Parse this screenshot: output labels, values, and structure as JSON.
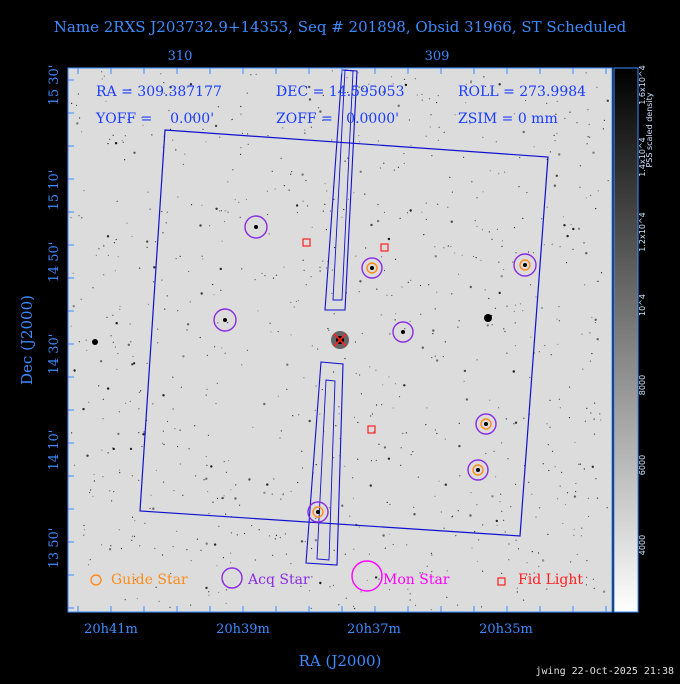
{
  "title": "Name 2RXS J203732.9+14353, Seq # 201898, Obsid 31966, ST Scheduled",
  "footer": "jwing 22-Oct-2025 21:38",
  "info": {
    "ra": "RA = 309.387177",
    "dec": "DEC = 14.595053",
    "roll": "ROLL = 273.9984",
    "yoff": "YOFF =    0.000'",
    "zoff": "ZOFF =   0.0000'",
    "zsim": "ZSIM = 0 mm"
  },
  "axes": {
    "xlabel": "RA (J2000)",
    "ylabel": "Dec (J2000)",
    "bottom_ticks": [
      "20h41m",
      "20h39m",
      "20h37m",
      "20h35m"
    ],
    "top_ticks": [
      "310",
      "309"
    ],
    "left_ticks": [
      "15 30'",
      "15 10'",
      "14 50'",
      "14 30'",
      "14 10'",
      "13 50'"
    ]
  },
  "colorbar": {
    "label": "PSS scaled density",
    "ticks": [
      "1.6x10^4",
      "1.4x10^4",
      "1.2x10^4",
      "10^4",
      "8000",
      "6000",
      "4000"
    ]
  },
  "legend": {
    "guide": "Guide Star",
    "acq": "Acq Star",
    "mon": "Mon Star",
    "fid": "Fid Light"
  },
  "colors": {
    "blue": "#3d8bff",
    "orange": "#ff8c1a",
    "purple": "#8a2be2",
    "magenta": "#ff00ff",
    "red": "#ff2020",
    "fov": "#1010d0"
  }
}
